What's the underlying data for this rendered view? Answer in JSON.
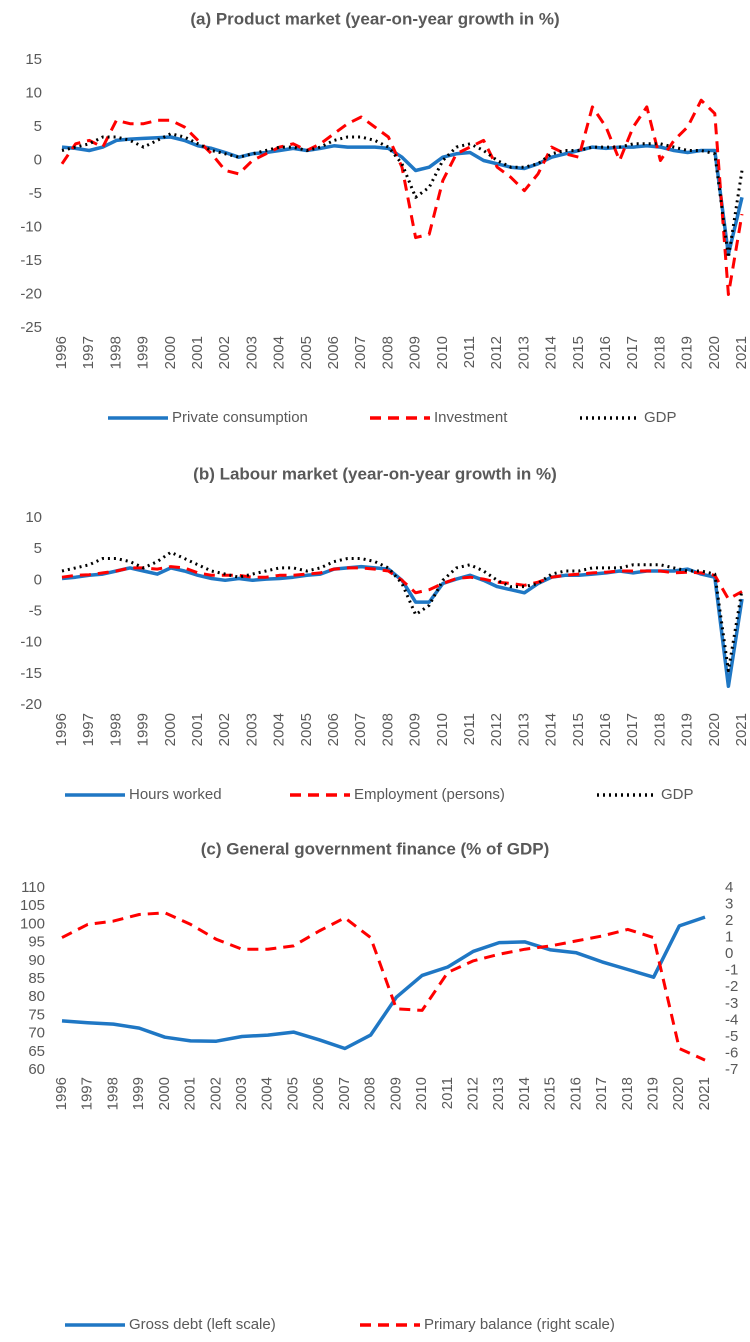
{
  "chart_data": [
    {
      "type": "line",
      "title": "(a) Product market (year-on-year growth in %)",
      "categories": [
        "1996",
        null,
        "1997",
        null,
        "1998",
        null,
        "1999",
        null,
        "2000",
        null,
        "2001",
        null,
        "2002",
        null,
        "2003",
        null,
        "2004",
        null,
        "2005",
        null,
        "2006",
        null,
        "2007",
        null,
        "2008",
        null,
        "2009",
        null,
        "2010",
        null,
        "2011",
        null,
        "2012",
        null,
        "2013",
        null,
        "2014",
        null,
        "2015",
        null,
        "2016",
        null,
        "2017",
        null,
        "2018",
        null,
        "2019",
        null,
        "2020",
        null,
        "2021"
      ],
      "series": [
        {
          "name": "Private consumption",
          "color": "#1f77c4",
          "style": "solid",
          "values": [
            2,
            1.8,
            1.5,
            2,
            3,
            3.2,
            3.3,
            3.4,
            3.5,
            3,
            2.2,
            1.8,
            1.2,
            0.5,
            1,
            1.2,
            1.5,
            1.8,
            1.5,
            1.8,
            2.2,
            2,
            2,
            2,
            1.8,
            0.5,
            -1.5,
            -1,
            0.5,
            1,
            1.2,
            0,
            -0.5,
            -1,
            -1.2,
            -0.5,
            0.5,
            1,
            1.5,
            2,
            1.8,
            2,
            2,
            2.2,
            2,
            1.5,
            1.2,
            1.5,
            1.5,
            -14,
            -5.5
          ]
        },
        {
          "name": "Investment",
          "color": "#ff0000",
          "style": "dashed",
          "values": [
            -0.5,
            2.5,
            3,
            2,
            6,
            5.5,
            5.5,
            6,
            6,
            5,
            3,
            1,
            -1.5,
            -2,
            0,
            1,
            2,
            2.5,
            1.5,
            2.5,
            4,
            5.5,
            6.5,
            5,
            3.5,
            -1,
            -11.5,
            -11,
            -3,
            1,
            2,
            3,
            -1,
            -2.5,
            -4.5,
            -2,
            2,
            1,
            0.5,
            8,
            5,
            0,
            5,
            8,
            0,
            3,
            5,
            9,
            7,
            -20,
            -8
          ]
        },
        {
          "name": "GDP",
          "color": "#000000",
          "style": "dotted",
          "values": [
            1.5,
            2,
            2.5,
            3.5,
            3.5,
            3,
            2,
            3,
            4,
            3.5,
            2.5,
            1.5,
            1,
            0.5,
            1,
            1.5,
            2,
            2,
            1.5,
            2,
            3,
            3.5,
            3.5,
            3,
            2,
            -0.5,
            -5.5,
            -4,
            0,
            2,
            2.5,
            1.5,
            0,
            -1,
            -1,
            -0.5,
            1,
            1.5,
            1.5,
            2,
            2,
            2,
            2.5,
            2.5,
            2.5,
            2,
            1.5,
            1.5,
            1,
            -14.5,
            -1.5
          ]
        }
      ],
      "ylim": [
        -25,
        15
      ],
      "yticks": [
        -25,
        -20,
        -15,
        -10,
        -5,
        0,
        5,
        10,
        15
      ],
      "grid": false
    },
    {
      "type": "line",
      "title": "(b) Labour market (year-on-year growth in %)",
      "categories": [
        "1996",
        null,
        "1997",
        null,
        "1998",
        null,
        "1999",
        null,
        "2000",
        null,
        "2001",
        null,
        "2002",
        null,
        "2003",
        null,
        "2004",
        null,
        "2005",
        null,
        "2006",
        null,
        "2007",
        null,
        "2008",
        null,
        "2009",
        null,
        "2010",
        null,
        "2011",
        null,
        "2012",
        null,
        "2013",
        null,
        "2014",
        null,
        "2015",
        null,
        "2016",
        null,
        "2017",
        null,
        "2018",
        null,
        "2019",
        null,
        "2020",
        null,
        "2021"
      ],
      "series": [
        {
          "name": "Hours worked",
          "color": "#1f77c4",
          "style": "solid",
          "values": [
            0.3,
            0.5,
            0.8,
            1,
            1.5,
            2,
            1.5,
            1,
            2,
            1.5,
            0.8,
            0.3,
            0,
            0.3,
            0,
            0.2,
            0.3,
            0.5,
            0.8,
            1,
            1.8,
            2,
            2.2,
            2,
            1.8,
            0,
            -3.5,
            -3.5,
            -0.5,
            0.2,
            0.8,
            0,
            -1,
            -1.5,
            -2,
            -0.5,
            0.5,
            0.8,
            0.8,
            1,
            1.2,
            1.5,
            1.2,
            1.5,
            1.5,
            1.5,
            1.8,
            1,
            0.5,
            -17,
            -3
          ]
        },
        {
          "name": "Employment (persons)",
          "color": "#ff0000",
          "style": "dashed",
          "values": [
            0.5,
            0.8,
            0.9,
            1.2,
            1.5,
            2,
            2,
            1.8,
            2.2,
            2,
            1.2,
            0.8,
            0.8,
            0.8,
            0.5,
            0.5,
            0.8,
            0.8,
            1,
            1.2,
            1.8,
            2,
            2,
            1.8,
            1.5,
            0,
            -2,
            -1.5,
            -0.5,
            0.3,
            0.5,
            0.2,
            -0.3,
            -0.5,
            -0.8,
            -0.3,
            0.5,
            0.8,
            1,
            1.2,
            1.3,
            1.5,
            1.5,
            1.5,
            1.5,
            1.2,
            1.3,
            1.2,
            0.8,
            -3,
            -1.8
          ]
        },
        {
          "name": "GDP",
          "color": "#000000",
          "style": "dotted",
          "values": [
            1.5,
            2,
            2.5,
            3.5,
            3.5,
            3,
            2,
            3,
            4.5,
            3.5,
            2.5,
            1.5,
            1,
            0.5,
            1,
            1.5,
            2,
            2,
            1.5,
            2,
            3,
            3.5,
            3.5,
            3,
            2,
            -0.5,
            -5.5,
            -4,
            0,
            2,
            2.5,
            1.5,
            0,
            -1,
            -1,
            -0.5,
            1,
            1.5,
            1.5,
            2,
            2,
            2,
            2.5,
            2.5,
            2.5,
            2,
            1.5,
            1.5,
            1,
            -14.5,
            -1.5
          ]
        }
      ],
      "ylim": [
        -20,
        10
      ],
      "yticks": [
        -20,
        -15,
        -10,
        -5,
        0,
        5,
        10
      ],
      "grid": false
    },
    {
      "type": "line",
      "title": "(c) General government finance (% of GDP)",
      "categories": [
        "1996",
        "1997",
        "1998",
        "1999",
        "2000",
        "2001",
        "2002",
        "2003",
        "2004",
        "2005",
        "2006",
        "2007",
        "2008",
        "2009",
        "2010",
        "2011",
        "2012",
        "2013",
        "2014",
        "2015",
        "2016",
        "2017",
        "2018",
        "2019",
        "2020",
        "2021"
      ],
      "series": [
        {
          "name": "Gross debt (left scale)",
          "color": "#1f77c4",
          "style": "solid",
          "values": [
            73.5,
            73,
            72.6,
            71.5,
            69,
            68,
            67.9,
            69.2,
            69.6,
            70.4,
            68.3,
            65.9,
            69.6,
            80,
            86,
            88.3,
            92.6,
            95,
            95.2,
            93,
            92.2,
            89.7,
            87.6,
            85.5,
            99.6,
            102
          ]
        },
        {
          "name": "Primary balance (right scale)",
          "color": "#ff0000",
          "style": "dashed",
          "axis": "y2",
          "values": [
            1,
            1.8,
            2,
            2.4,
            2.5,
            1.8,
            0.9,
            0.3,
            0.3,
            0.5,
            1.4,
            2.2,
            1,
            -3.3,
            -3.4,
            -1.1,
            -0.4,
            0,
            0.3,
            0.5,
            0.8,
            1.1,
            1.5,
            1,
            -5.7,
            -6.4
          ]
        }
      ],
      "ylim": [
        60,
        110
      ],
      "yticks": [
        60,
        65,
        70,
        75,
        80,
        85,
        90,
        95,
        100,
        105,
        110
      ],
      "y2lim": [
        -7,
        4
      ],
      "y2ticks": [
        -7,
        -6,
        -5,
        -4,
        -3,
        -2,
        -1,
        0,
        1,
        2,
        3,
        4
      ],
      "grid": false
    }
  ]
}
